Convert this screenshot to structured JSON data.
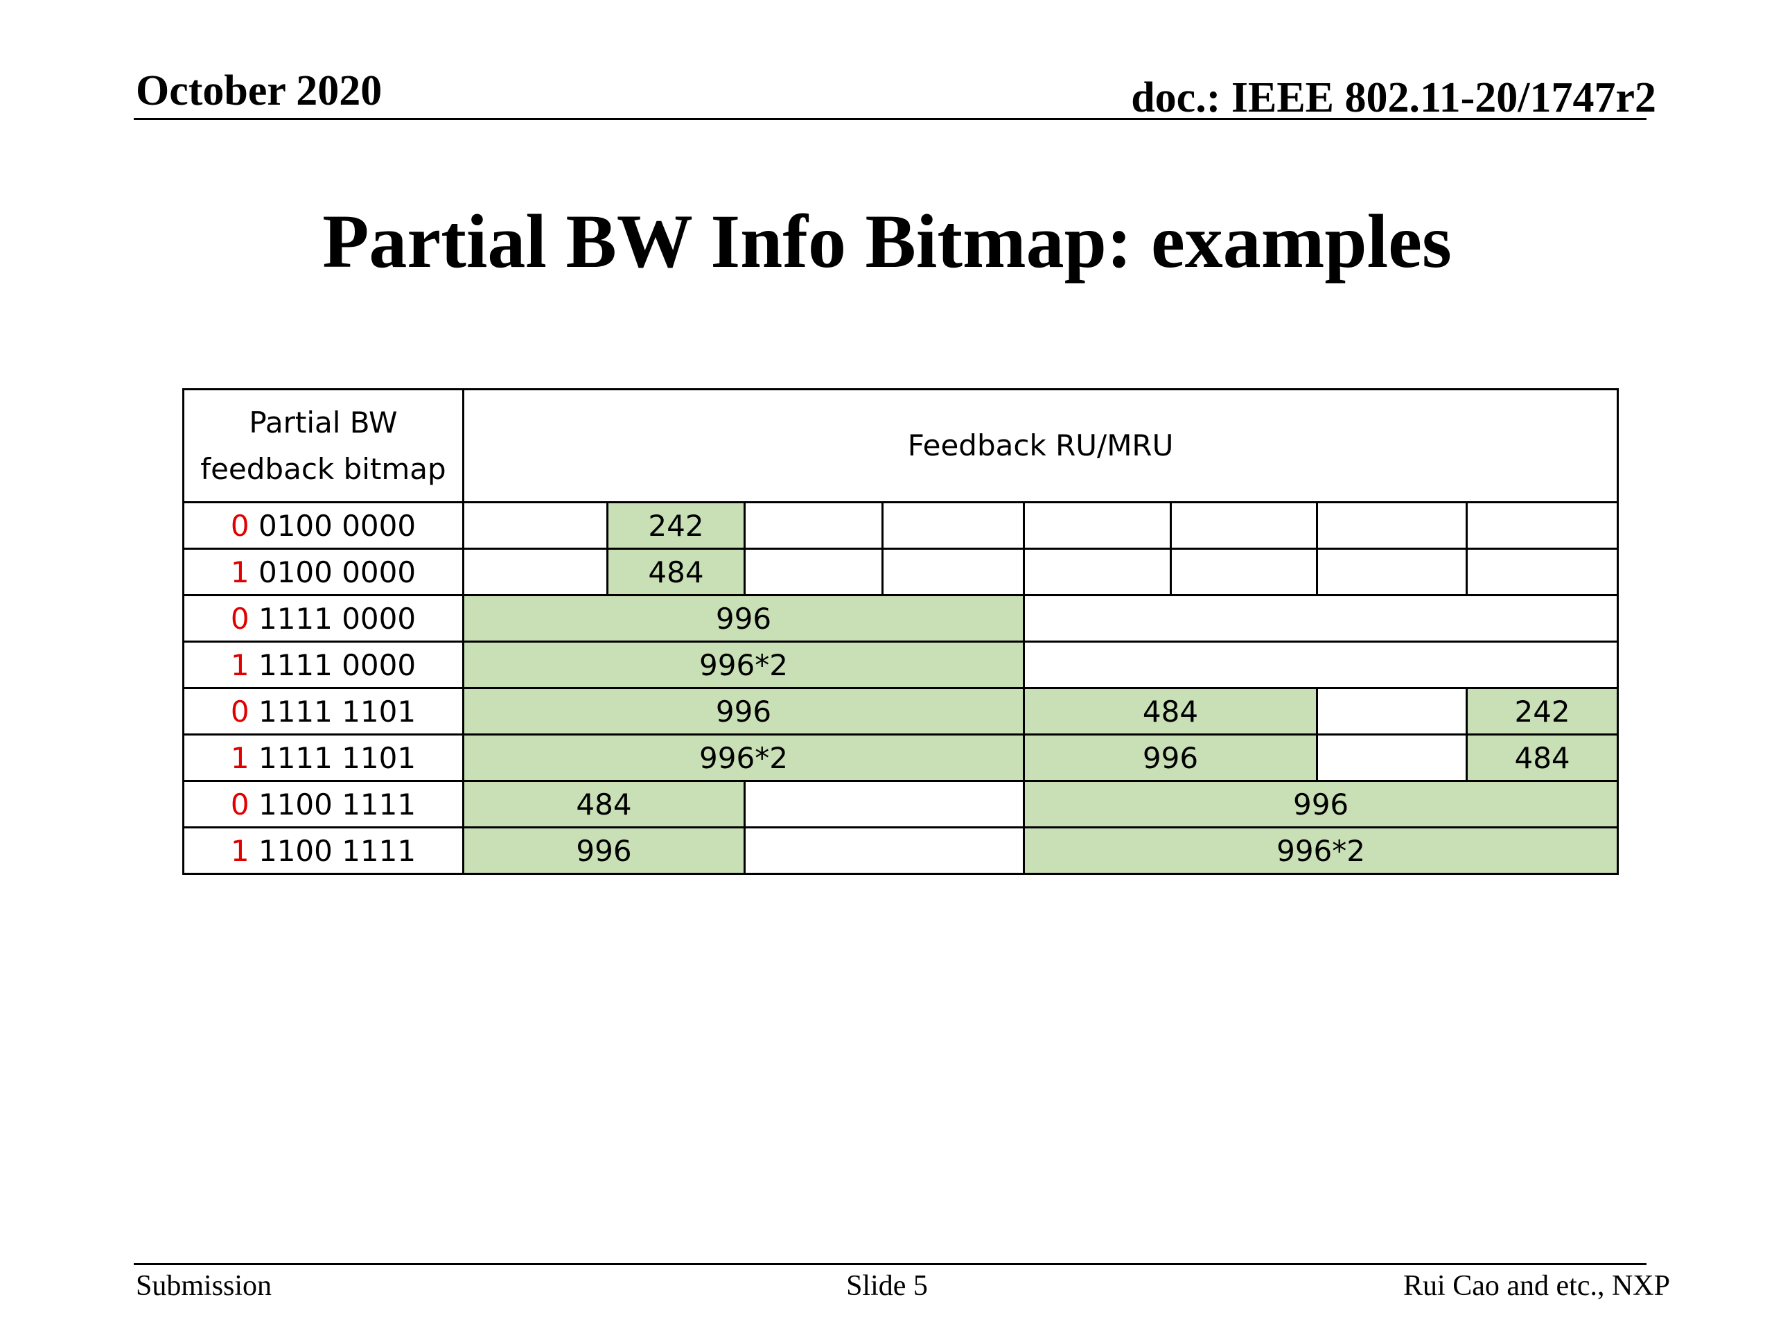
{
  "header": {
    "date": "October 2020",
    "doc": "doc.: IEEE 802.11-20/1747r2"
  },
  "title": "Partial BW Info Bitmap: examples",
  "table": {
    "col1_header_line1": "Partial BW",
    "col1_header_line2": "feedback bitmap",
    "col2_header": "Feedback RU/MRU",
    "rows": [
      {
        "bit": "0",
        "rest": " 0100 0000",
        "cells": [
          "242"
        ]
      },
      {
        "bit": "1",
        "rest": " 0100 0000",
        "cells": [
          "484"
        ]
      },
      {
        "bit": "0",
        "rest": " 1111 0000",
        "cells": [
          "996"
        ]
      },
      {
        "bit": "1",
        "rest": " 1111 0000",
        "cells": [
          "996*2"
        ]
      },
      {
        "bit": "0",
        "rest": " 1111 1101",
        "cells": [
          "996",
          "484",
          "242"
        ]
      },
      {
        "bit": "1",
        "rest": " 1111 1101",
        "cells": [
          "996*2",
          "996",
          "484"
        ]
      },
      {
        "bit": "0",
        "rest": " 1100 1111",
        "cells": [
          "484",
          "996"
        ]
      },
      {
        "bit": "1",
        "rest": " 1100 1111",
        "cells": [
          "996",
          "996*2"
        ]
      }
    ],
    "highlight_color": "#c9dfb6",
    "leading_bit_color": "#e00000"
  },
  "footer": {
    "left": "Submission",
    "center": "Slide 5",
    "right": "Rui Cao and etc., NXP"
  }
}
